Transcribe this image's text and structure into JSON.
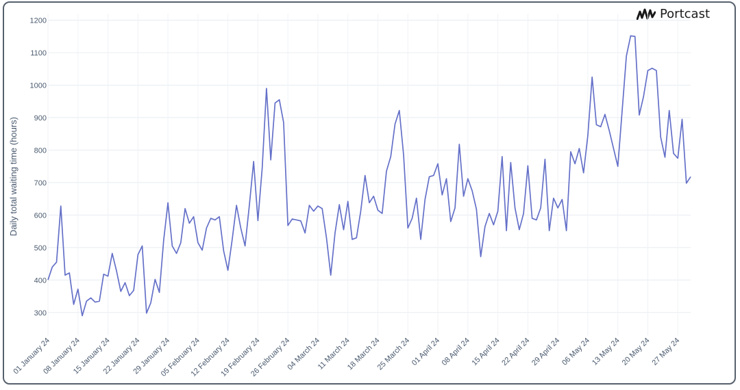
{
  "brand": {
    "name": "Portcast",
    "logo_icon": "portcast-logo-icon"
  },
  "chart_data": {
    "type": "line",
    "title": "",
    "xlabel": "",
    "ylabel": "Daily total waiting time (hours)",
    "ylim": [
      230,
      1220
    ],
    "yticks": [
      300,
      400,
      500,
      600,
      700,
      800,
      900,
      1000,
      1100,
      1200
    ],
    "grid": true,
    "line_color": "#6470c8",
    "x_ticks": [
      "01 January 24",
      "08 January 24",
      "15 January 24",
      "22 January 24",
      "29 January 24",
      "05 February 24",
      "12 February 24",
      "19 February 24",
      "26 February 24",
      "04 March 24",
      "11 March 24",
      "18 March 24",
      "25 March 24",
      "01 April 24",
      "08 April 24",
      "15 April 24",
      "22 April 24",
      "29 April 24",
      "06 May 24",
      "13 May 24",
      "20 May 24",
      "27 May 24"
    ],
    "series": [
      {
        "x": [
          "2024-01-01",
          "2024-01-02",
          "2024-01-03",
          "2024-01-04",
          "2024-01-05",
          "2024-01-06",
          "2024-01-07",
          "2024-01-08",
          "2024-01-09",
          "2024-01-10",
          "2024-01-11",
          "2024-01-12",
          "2024-01-13",
          "2024-01-14",
          "2024-01-15",
          "2024-01-16",
          "2024-01-17",
          "2024-01-18",
          "2024-01-19",
          "2024-01-20",
          "2024-01-21",
          "2024-01-22",
          "2024-01-23",
          "2024-01-24",
          "2024-01-25",
          "2024-01-26",
          "2024-01-27",
          "2024-01-28",
          "2024-01-29",
          "2024-01-30",
          "2024-01-31",
          "2024-02-01",
          "2024-02-02",
          "2024-02-03",
          "2024-02-04",
          "2024-02-05",
          "2024-02-06",
          "2024-02-07",
          "2024-02-08",
          "2024-02-09",
          "2024-02-10",
          "2024-02-11",
          "2024-02-12",
          "2024-02-13",
          "2024-02-14",
          "2024-02-15",
          "2024-02-16",
          "2024-02-17",
          "2024-02-18",
          "2024-02-19",
          "2024-02-20",
          "2024-02-21",
          "2024-02-22",
          "2024-02-23",
          "2024-02-24",
          "2024-02-25",
          "2024-02-26",
          "2024-02-27",
          "2024-02-28",
          "2024-02-29",
          "2024-03-01",
          "2024-03-02",
          "2024-03-03",
          "2024-03-04",
          "2024-03-05",
          "2024-03-06",
          "2024-03-07",
          "2024-03-08",
          "2024-03-09",
          "2024-03-10",
          "2024-03-11",
          "2024-03-12",
          "2024-03-13",
          "2024-03-14",
          "2024-03-15",
          "2024-03-16",
          "2024-03-17",
          "2024-03-18",
          "2024-03-19",
          "2024-03-20",
          "2024-03-21",
          "2024-03-22",
          "2024-03-23",
          "2024-03-24",
          "2024-03-25",
          "2024-03-26",
          "2024-03-27",
          "2024-03-28",
          "2024-03-29",
          "2024-03-30",
          "2024-03-31",
          "2024-04-01",
          "2024-04-02",
          "2024-04-03",
          "2024-04-04",
          "2024-04-05",
          "2024-04-06",
          "2024-04-07",
          "2024-04-08",
          "2024-04-09",
          "2024-04-10",
          "2024-04-11",
          "2024-04-12",
          "2024-04-13",
          "2024-04-14",
          "2024-04-15",
          "2024-04-16",
          "2024-04-17",
          "2024-04-18",
          "2024-04-19",
          "2024-04-20",
          "2024-04-21",
          "2024-04-22",
          "2024-04-23",
          "2024-04-24",
          "2024-04-25",
          "2024-04-26",
          "2024-04-27",
          "2024-04-28",
          "2024-04-29",
          "2024-04-30",
          "2024-05-01",
          "2024-05-02",
          "2024-05-03",
          "2024-05-04",
          "2024-05-05",
          "2024-05-06",
          "2024-05-07",
          "2024-05-08",
          "2024-05-09",
          "2024-05-10",
          "2024-05-11",
          "2024-05-12",
          "2024-05-13",
          "2024-05-14",
          "2024-05-15",
          "2024-05-16",
          "2024-05-17",
          "2024-05-18",
          "2024-05-19",
          "2024-05-20",
          "2024-05-21",
          "2024-05-22",
          "2024-05-23",
          "2024-05-24",
          "2024-05-25",
          "2024-05-26",
          "2024-05-27",
          "2024-05-28",
          "2024-05-29",
          "2024-05-30"
        ],
        "y": [
          400,
          440,
          455,
          628,
          415,
          422,
          325,
          372,
          290,
          335,
          345,
          332,
          335,
          418,
          412,
          482,
          428,
          365,
          392,
          352,
          368,
          478,
          505,
          298,
          330,
          402,
          362,
          522,
          638,
          505,
          482,
          515,
          620,
          575,
          595,
          515,
          492,
          560,
          590,
          585,
          595,
          490,
          430,
          525,
          630,
          560,
          505,
          630,
          765,
          583,
          745,
          990,
          770,
          945,
          955,
          885,
          568,
          588,
          585,
          582,
          545,
          630,
          612,
          628,
          620,
          530,
          415,
          545,
          632,
          555,
          642,
          525,
          530,
          612,
          722,
          638,
          658,
          615,
          605,
          735,
          780,
          880,
          922,
          785,
          560,
          590,
          652,
          525,
          648,
          718,
          722,
          758,
          662,
          712,
          580,
          622,
          818,
          658,
          712,
          675,
          618,
          472,
          565,
          605,
          570,
          612,
          780,
          552,
          762,
          622,
          555,
          605,
          752,
          590,
          585,
          622,
          772,
          552,
          652,
          622,
          648,
          552,
          795,
          758,
          805,
          730,
          845,
          1025,
          878,
          872,
          910,
          860,
          805,
          750,
          920,
          1090,
          1152,
          1150,
          908,
          965,
          1045,
          1052,
          1045,
          840,
          778,
          922,
          790,
          775,
          895,
          698,
          718
        ]
      }
    ]
  }
}
